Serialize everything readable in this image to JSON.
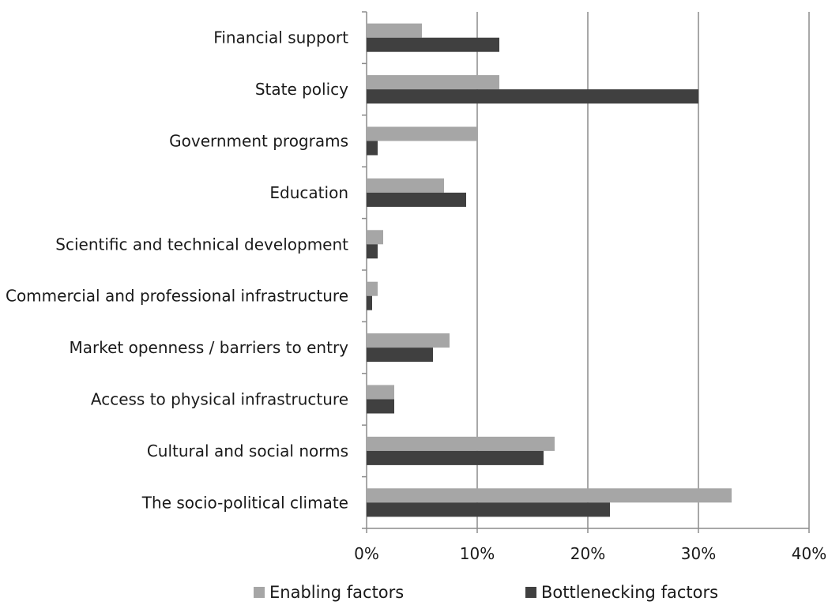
{
  "chart_data": {
    "type": "bar",
    "orientation": "horizontal",
    "categories": [
      "Financial support",
      "State policy",
      "Government programs",
      "Education",
      "Scientific and technical development",
      "Commercial and professional infrastructure",
      "Market openness / barriers to entry",
      "Access to physical infrastructure",
      "Cultural and social norms",
      "The socio-political climate"
    ],
    "series": [
      {
        "name": "Enabling factors",
        "color": "#a6a6a6",
        "values": [
          5,
          12,
          10,
          7,
          1.5,
          1,
          7.5,
          2.5,
          17,
          33
        ]
      },
      {
        "name": "Bottlenecking factors",
        "color": "#404040",
        "values": [
          12,
          30,
          1,
          9,
          1,
          0.5,
          6,
          2.5,
          16,
          22
        ]
      }
    ],
    "x_ticks": [
      "0%",
      "10%",
      "20%",
      "30%",
      "40%"
    ],
    "xlim": [
      0,
      40
    ],
    "grid": "vertical",
    "legend_position": "bottom",
    "title": "",
    "xlabel": "",
    "ylabel": ""
  }
}
